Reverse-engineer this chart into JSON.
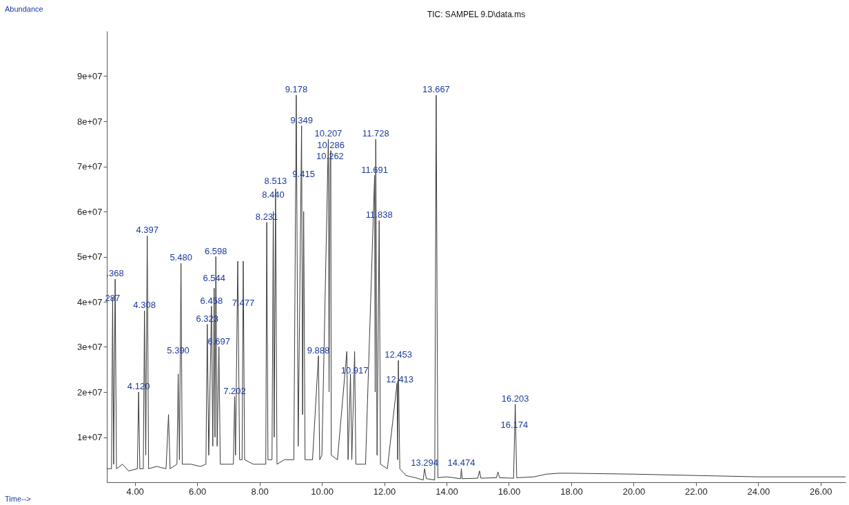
{
  "chart_data": {
    "type": "line",
    "title": "TIC: SAMPEL 9.D\\data.ms",
    "grid": false,
    "marker": "none",
    "line_style": "solid",
    "xlim": [
      3.1,
      26.8
    ],
    "ylim": [
      0,
      100000000
    ],
    "xticks": [
      {
        "value": 4,
        "label": "4.00"
      },
      {
        "value": 6,
        "label": "6.00"
      },
      {
        "value": 8,
        "label": "8.00"
      },
      {
        "value": 10,
        "label": "10.00"
      },
      {
        "value": 12,
        "label": "12.00"
      },
      {
        "value": 14,
        "label": "14.00"
      },
      {
        "value": 16,
        "label": "16.00"
      },
      {
        "value": 18,
        "label": "18.00"
      },
      {
        "value": 20,
        "label": "20.00"
      },
      {
        "value": 22,
        "label": "22.00"
      },
      {
        "value": 24,
        "label": "24.00"
      },
      {
        "value": 26,
        "label": "26.00"
      }
    ],
    "yticks": [
      {
        "value": 10000000,
        "label": "1e+07"
      },
      {
        "value": 20000000,
        "label": "2e+07"
      },
      {
        "value": 30000000,
        "label": "3e+07"
      },
      {
        "value": 40000000,
        "label": "4e+07"
      },
      {
        "value": 50000000,
        "label": "5e+07"
      },
      {
        "value": 60000000,
        "label": "6e+07"
      },
      {
        "value": 70000000,
        "label": "7e+07"
      },
      {
        "value": 80000000,
        "label": "8e+07"
      },
      {
        "value": 90000000,
        "label": "9e+07"
      }
    ],
    "x": [
      3.1,
      3.25,
      3.287,
      3.32,
      3.368,
      3.41,
      3.6,
      3.8,
      4.08,
      4.12,
      4.16,
      4.27,
      4.308,
      4.35,
      4.397,
      4.44,
      4.7,
      5.0,
      5.08,
      5.13,
      5.35,
      5.39,
      5.43,
      5.48,
      5.52,
      5.8,
      6.1,
      6.28,
      6.323,
      6.37,
      6.458,
      6.5,
      6.544,
      6.57,
      6.598,
      6.64,
      6.697,
      6.74,
      7.0,
      7.16,
      7.202,
      7.23,
      7.3,
      7.36,
      7.44,
      7.477,
      7.52,
      7.8,
      8.0,
      8.2,
      8.231,
      8.27,
      8.4,
      8.44,
      8.47,
      8.513,
      8.56,
      8.8,
      9.1,
      9.178,
      9.24,
      9.349,
      9.38,
      9.415,
      9.46,
      9.7,
      9.888,
      9.93,
      10.0,
      10.207,
      10.23,
      10.262,
      10.286,
      10.3,
      10.5,
      10.8,
      10.84,
      10.917,
      10.96,
      11.05,
      11.09,
      11.4,
      11.691,
      11.71,
      11.728,
      11.77,
      11.838,
      11.88,
      12.1,
      12.413,
      12.43,
      12.453,
      12.5,
      12.7,
      13.0,
      13.25,
      13.294,
      13.35,
      13.62,
      13.667,
      13.72,
      14.0,
      14.45,
      14.474,
      14.5,
      15.0,
      15.058,
      15.1,
      15.6,
      15.649,
      15.7,
      16.15,
      16.203,
      16.25,
      16.8,
      17.2,
      17.6,
      18.0,
      20.0,
      22.0,
      24.0,
      26.8
    ],
    "values": [
      3000000,
      3000000,
      41000000,
      4000000,
      45000000,
      3000000,
      4000000,
      2500000,
      3000000,
      20000000,
      3000000,
      3000000,
      38000000,
      6000000,
      54600000,
      3000000,
      3500000,
      3000000,
      15000000,
      3000000,
      4000000,
      24000000,
      5000000,
      48500000,
      4000000,
      4000000,
      3500000,
      4000000,
      35000000,
      6000000,
      39000000,
      8000000,
      43000000,
      10000000,
      50000000,
      8000000,
      30000000,
      4000000,
      4000000,
      4000000,
      19000000,
      6000000,
      49000000,
      5000000,
      5000000,
      49000000,
      5000000,
      4000000,
      4000000,
      4000000,
      57600000,
      5000000,
      5000000,
      60000000,
      10000000,
      65000000,
      4000000,
      5000000,
      5000000,
      85800000,
      8000000,
      79000000,
      15000000,
      60000000,
      5000000,
      5000000,
      28000000,
      5000000,
      6000000,
      76000000,
      20000000,
      71000000,
      73500000,
      6000000,
      5000000,
      29000000,
      5000000,
      24000000,
      5000000,
      29000000,
      4000000,
      4000000,
      68000000,
      20000000,
      76000000,
      6000000,
      58000000,
      4000000,
      3000000,
      22000000,
      5000000,
      27000000,
      3000000,
      1500000,
      1000000,
      500000,
      3000000,
      800000,
      500000,
      85800000,
      1000000,
      1200000,
      800000,
      3000000,
      800000,
      900000,
      2500000,
      900000,
      1000000,
      2300000,
      1000000,
      900000,
      17300000,
      1000000,
      1200000,
      1800000,
      2000000,
      2000000,
      1800000,
      1500000,
      1200000,
      1200000
    ],
    "color": "#3a3a3a",
    "annotations": [
      "Abundance",
      "Time-->",
      {
        "text": ".368",
        "x": 3.368,
        "y": 45000000
      },
      {
        "text": "287",
        "x": 3.287,
        "y": 39500000
      },
      {
        "text": "4.397",
        "x": 4.397,
        "y": 54600000
      },
      {
        "text": "4.308",
        "x": 4.308,
        "y": 38000000
      },
      {
        "text": "4.120",
        "x": 4.12,
        "y": 20000000
      },
      {
        "text": "5.480",
        "x": 5.48,
        "y": 48500000
      },
      {
        "text": "5.390",
        "x": 5.39,
        "y": 28000000
      },
      {
        "text": "6.598",
        "x": 6.598,
        "y": 50000000
      },
      {
        "text": "6.544",
        "x": 6.544,
        "y": 44000000
      },
      {
        "text": "6.458",
        "x": 6.458,
        "y": 39000000
      },
      {
        "text": "6.323",
        "x": 6.323,
        "y": 35000000
      },
      {
        "text": "6.697",
        "x": 6.697,
        "y": 30000000
      },
      {
        "text": "7.477",
        "x": 7.477,
        "y": 38500000
      },
      {
        "text": "7.202",
        "x": 7.202,
        "y": 19000000
      },
      {
        "text": "8.231",
        "x": 8.231,
        "y": 57600000
      },
      {
        "text": "8.440",
        "x": 8.44,
        "y": 62500000
      },
      {
        "text": "8.513",
        "x": 8.513,
        "y": 65500000
      },
      {
        "text": "9.178",
        "x": 9.178,
        "y": 85800000
      },
      {
        "text": "9.349",
        "x": 9.349,
        "y": 79000000
      },
      {
        "text": "9.415",
        "x": 9.415,
        "y": 67000000
      },
      {
        "text": "10.207",
        "x": 10.207,
        "y": 76000000
      },
      {
        "text": "10.286",
        "x": 10.286,
        "y": 73500000
      },
      {
        "text": "10.262",
        "x": 10.262,
        "y": 71000000
      },
      {
        "text": "11.728",
        "x": 11.728,
        "y": 76000000
      },
      {
        "text": "11.691",
        "x": 11.691,
        "y": 68000000
      },
      {
        "text": "11.838",
        "x": 11.838,
        "y": 58000000
      },
      {
        "text": "9.888",
        "x": 9.888,
        "y": 28000000
      },
      {
        "text": "10.917",
        "x": 11.05,
        "y": 23500000
      },
      {
        "text": "12.453",
        "x": 12.453,
        "y": 27000000
      },
      {
        "text": "12.413",
        "x": 12.5,
        "y": 21500000
      },
      {
        "text": "13.667",
        "x": 13.667,
        "y": 85800000
      },
      {
        "text": "13.294",
        "x": 13.294,
        "y": 3000000
      },
      {
        "text": "14.474",
        "x": 14.474,
        "y": 3000000
      },
      {
        "text": "16.203",
        "x": 16.203,
        "y": 17300000
      },
      {
        "text": "16.174",
        "x": 16.174,
        "y": 11500000
      }
    ]
  }
}
